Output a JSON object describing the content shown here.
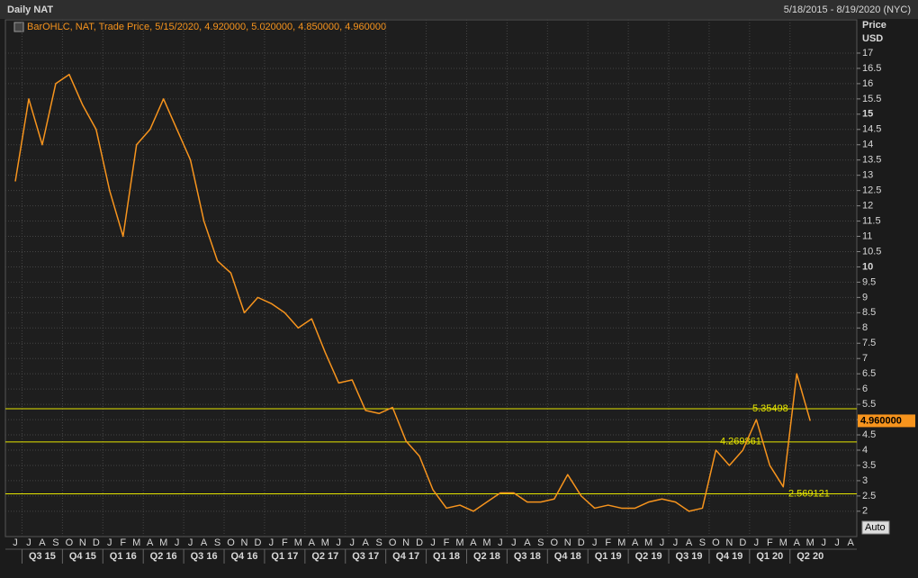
{
  "chart_data": {
    "type": "line",
    "title": "Daily NAT",
    "date_range": "5/18/2015 - 8/19/2020 (NYC)",
    "legend": "BarOHLC, NAT, Trade Price, 5/15/2020, 4.920000, 5.020000, 4.850000, 4.960000",
    "y_axis_label": "Price",
    "y_axis_unit": "USD",
    "scale_button": "Auto",
    "categories": [
      "J",
      "J",
      "A",
      "S",
      "O",
      "N",
      "D",
      "J",
      "F",
      "M",
      "A",
      "M",
      "J",
      "J",
      "A",
      "S",
      "O",
      "N",
      "D",
      "J",
      "F",
      "M",
      "A",
      "M",
      "J",
      "J",
      "A",
      "S",
      "O",
      "N",
      "D",
      "J",
      "F",
      "M",
      "A",
      "M",
      "J",
      "J",
      "A",
      "S",
      "O",
      "N",
      "D",
      "J",
      "F",
      "M",
      "A",
      "M",
      "J",
      "J",
      "A",
      "S",
      "O",
      "N",
      "D",
      "J",
      "F",
      "M",
      "A",
      "M",
      "J",
      "J",
      "A"
    ],
    "quarter_labels": [
      "Q3 15",
      "Q4 15",
      "Q1 16",
      "Q2 16",
      "Q3 16",
      "Q4 16",
      "Q1 17",
      "Q2 17",
      "Q3 17",
      "Q4 17",
      "Q1 18",
      "Q2 18",
      "Q3 18",
      "Q4 18",
      "Q1 19",
      "Q2 19",
      "Q3 19",
      "Q4 19",
      "Q1 20",
      "Q2 20"
    ],
    "series": [
      {
        "name": "NAT",
        "color": "#f7941d",
        "values": [
          12.8,
          15.5,
          14.0,
          16.0,
          16.3,
          15.3,
          14.5,
          12.5,
          11.0,
          14.0,
          14.5,
          15.5,
          14.5,
          13.5,
          11.5,
          10.2,
          9.8,
          8.5,
          9.0,
          8.8,
          8.5,
          8.0,
          8.3,
          7.2,
          6.2,
          6.3,
          5.3,
          5.2,
          5.4,
          4.3,
          3.8,
          2.7,
          2.1,
          2.2,
          2.0,
          2.3,
          2.6,
          2.6,
          2.3,
          2.3,
          2.4,
          3.2,
          2.5,
          2.1,
          2.2,
          2.1,
          2.1,
          2.3,
          2.4,
          2.3,
          2.0,
          2.1,
          4.0,
          3.5,
          4.0,
          5.0,
          3.5,
          2.8,
          6.5,
          4.96,
          null,
          null,
          null
        ]
      }
    ],
    "last_price": {
      "value": 4.96,
      "label": "4.960000"
    },
    "hlines": [
      5.35498,
      4.269861,
      2.569121
    ],
    "hline_color": "#e6e600",
    "ylim": [
      1.17,
      18.09
    ],
    "yticks": [
      2,
      2.5,
      3,
      3.5,
      4,
      4.5,
      5,
      5.5,
      6,
      6.5,
      7,
      7.5,
      8,
      8.5,
      9,
      9.5,
      10,
      10.5,
      11,
      11.5,
      12,
      12.5,
      13,
      13.5,
      14,
      14.5,
      15,
      15.5,
      16,
      16.5,
      17
    ],
    "grid": true
  }
}
